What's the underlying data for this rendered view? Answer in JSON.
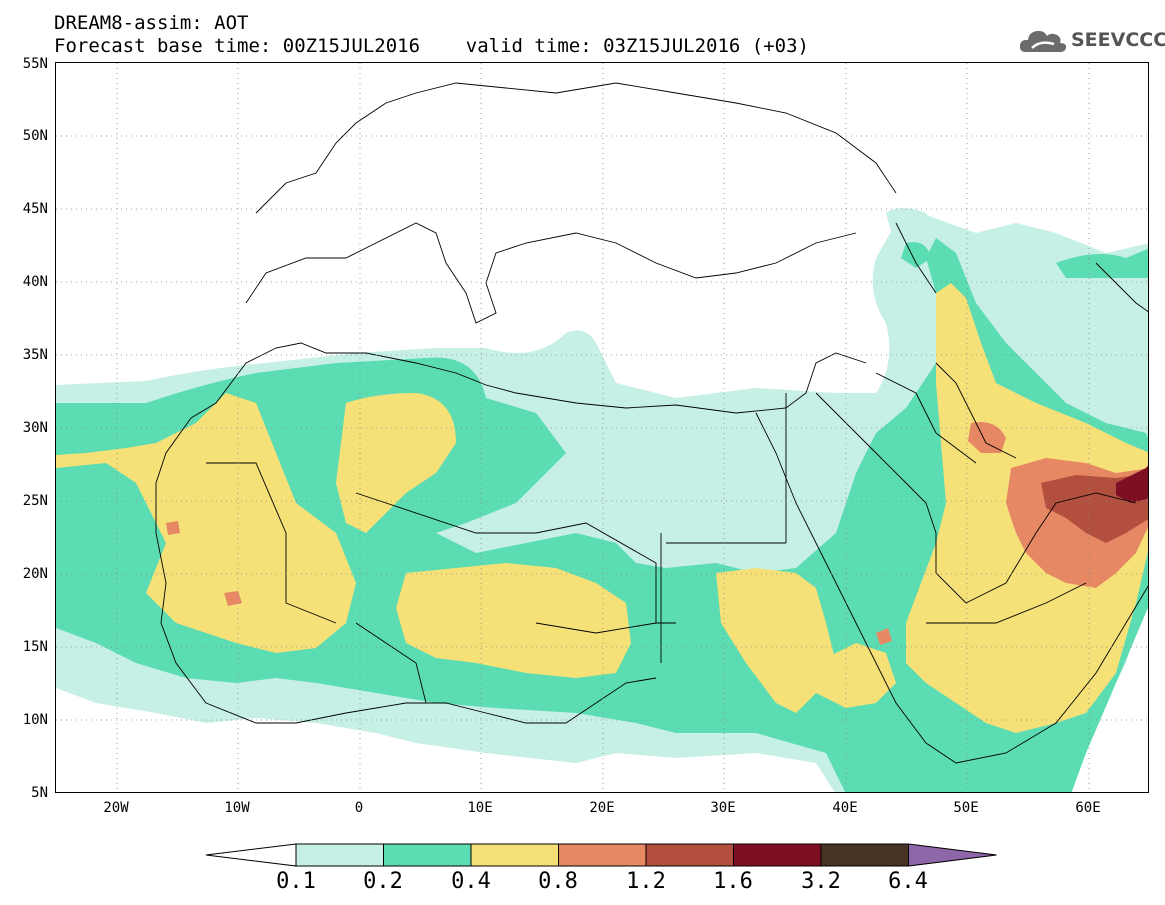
{
  "title": {
    "line1": "DREAM8-assim: AOT",
    "line2": "Forecast base time: 00Z15JUL2016    valid time: 03Z15JUL2016 (+03)"
  },
  "logo": {
    "text": "SEEVCCC",
    "icon": "cloud-icon"
  },
  "map": {
    "projection": "lat-lon",
    "lon_range": [
      -25,
      65
    ],
    "lat_range": [
      5,
      55
    ],
    "y_axis_labels": [
      "55N",
      "50N",
      "45N",
      "40N",
      "35N",
      "30N",
      "25N",
      "20N",
      "15N",
      "10N",
      "5N"
    ],
    "x_axis_labels": [
      "20W",
      "10W",
      "0",
      "10E",
      "20E",
      "30E",
      "40E",
      "50E",
      "60E"
    ],
    "grid": "dotted"
  },
  "colorbar": {
    "labels": [
      "0.1",
      "0.2",
      "0.4",
      "0.8",
      "1.2",
      "1.6",
      "3.2",
      "6.4"
    ],
    "colors": [
      "#ffffff",
      "#c6efe6",
      "#5cdcb2",
      "#f5e178",
      "#e68863",
      "#b34f3e",
      "#7d0e23",
      "#473224",
      "#8e67a8"
    ]
  }
}
